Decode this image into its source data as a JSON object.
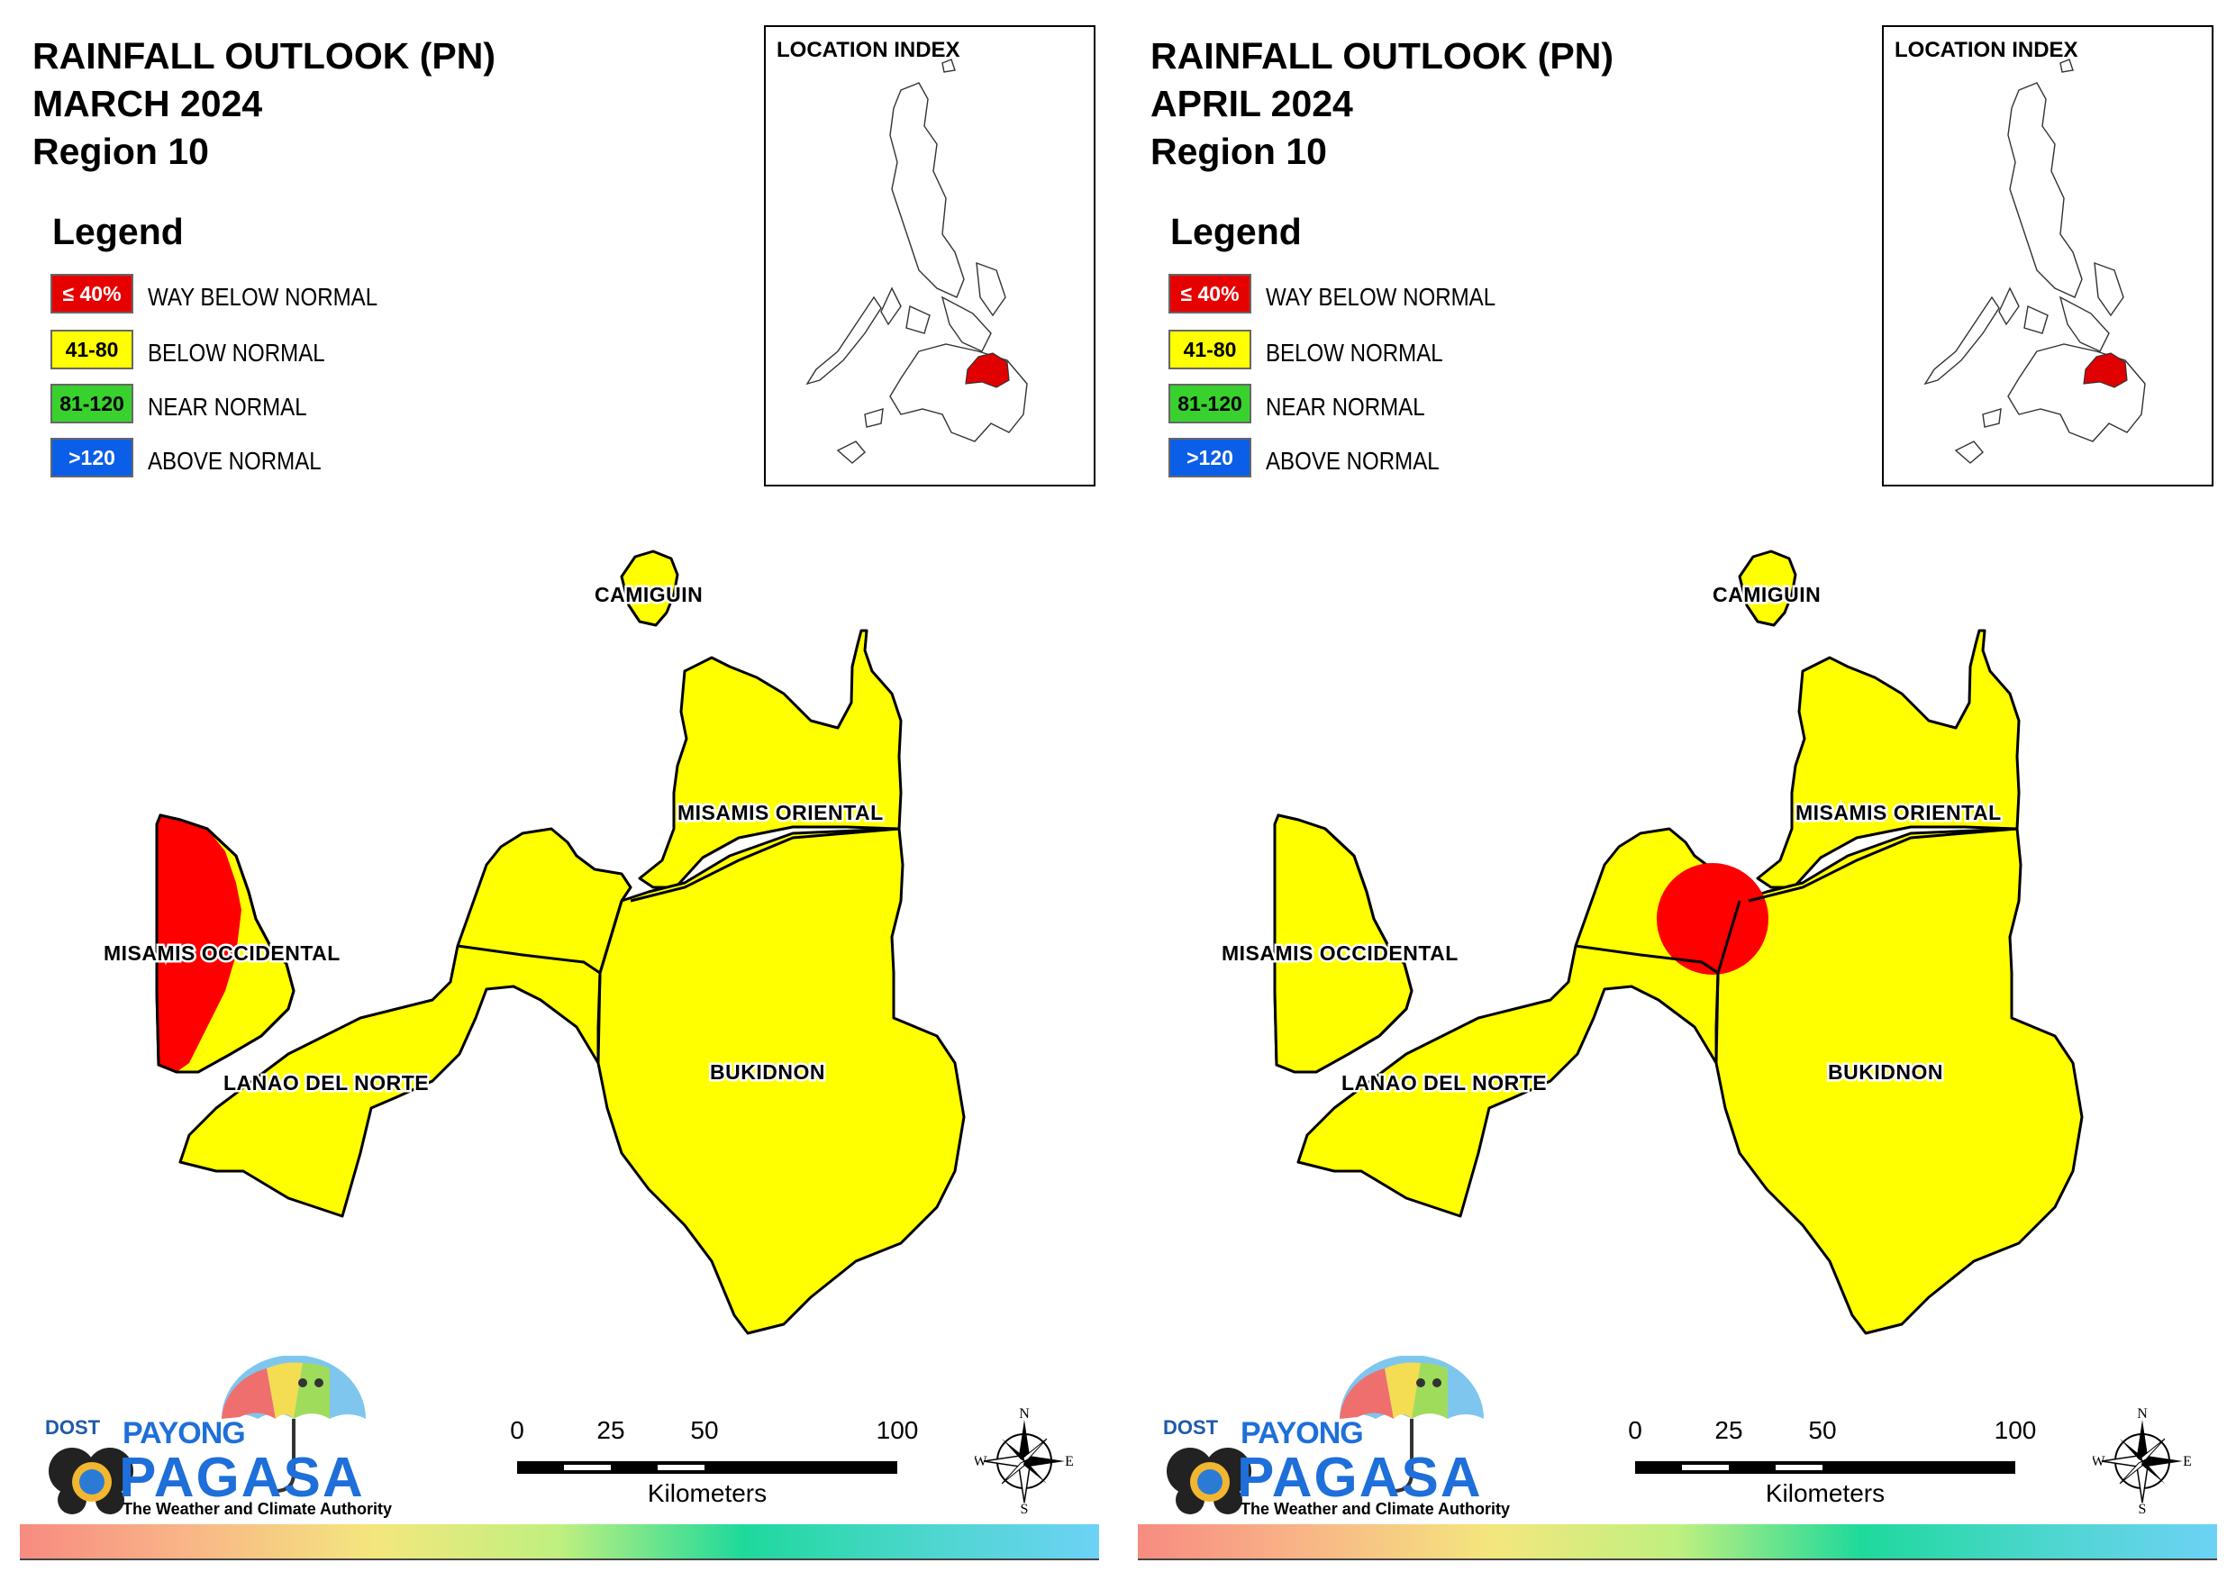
{
  "panels": [
    {
      "title_line1": "RAINFALL OUTLOOK (PN)",
      "title_line2": "MARCH 2024",
      "title_line3": "Region 10",
      "region_colors": {
        "misamis_occidental_west": "#ff0000",
        "circle": ""
      }
    },
    {
      "title_line1": "RAINFALL OUTLOOK (PN)",
      "title_line2": "APRIL 2024",
      "title_line3": "Region 10",
      "region_colors": {
        "misamis_occidental_west": "#ffff00",
        "circle": "#ff0000"
      }
    }
  ],
  "legend": {
    "title": "Legend",
    "items": [
      {
        "range": "≤ 40%",
        "label": "WAY BELOW NORMAL",
        "color": "#e60000",
        "text_color": "#ffffff"
      },
      {
        "range": "41-80",
        "label": "BELOW NORMAL",
        "color": "#ffff00",
        "text_color": "#000000"
      },
      {
        "range": "81-120",
        "label": "NEAR NORMAL",
        "color": "#38d12e",
        "text_color": "#000000"
      },
      {
        "range": ">120",
        "label": "ABOVE NORMAL",
        "color": "#0b5ee8",
        "text_color": "#ffffff"
      }
    ]
  },
  "inset": {
    "label": "LOCATION INDEX"
  },
  "provinces": {
    "camiguin": "CAMIGUIN",
    "misamis_oriental": "MISAMIS ORIENTAL",
    "misamis_occidental": "MISAMIS OCCIDENTAL",
    "lanao_del_norte": "LANAO DEL NORTE",
    "bukidnon": "BUKIDNON"
  },
  "map_fill": "#ffff00",
  "scale": {
    "ticks": [
      "0",
      "25",
      "50",
      "100"
    ],
    "unit": "Kilometers"
  },
  "compass": {
    "n": "N",
    "e": "E",
    "s": "S",
    "w": "W"
  },
  "logo": {
    "dost": "DOST",
    "payong": "PAYONG",
    "pagasa": "PAGASA",
    "tagline": "The Weather and Climate Authority"
  }
}
